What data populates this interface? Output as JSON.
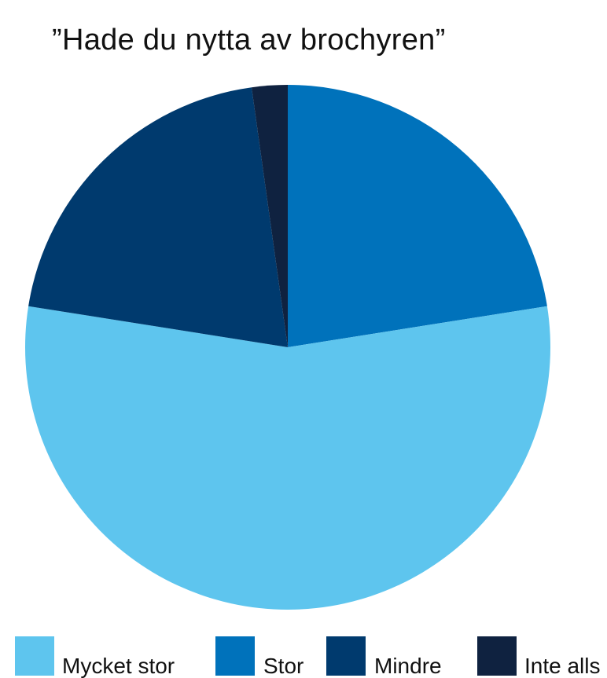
{
  "chart_data": {
    "type": "pie",
    "title": "”Hade du nytta av brochyren”",
    "categories": [
      "Mycket stor",
      "Stor",
      "Mindre",
      "Inte alls"
    ],
    "values": [
      55.0,
      22.5,
      20.3,
      2.2
    ],
    "colors": [
      "#5ec5ee",
      "#0072bb",
      "#003a6e",
      "#0f2240"
    ],
    "start_angle_deg": 0,
    "direction": "clockwise",
    "slice_order": [
      "Stor",
      "Mycket stor",
      "Mindre",
      "Inte alls"
    ],
    "legend_position": "bottom"
  }
}
